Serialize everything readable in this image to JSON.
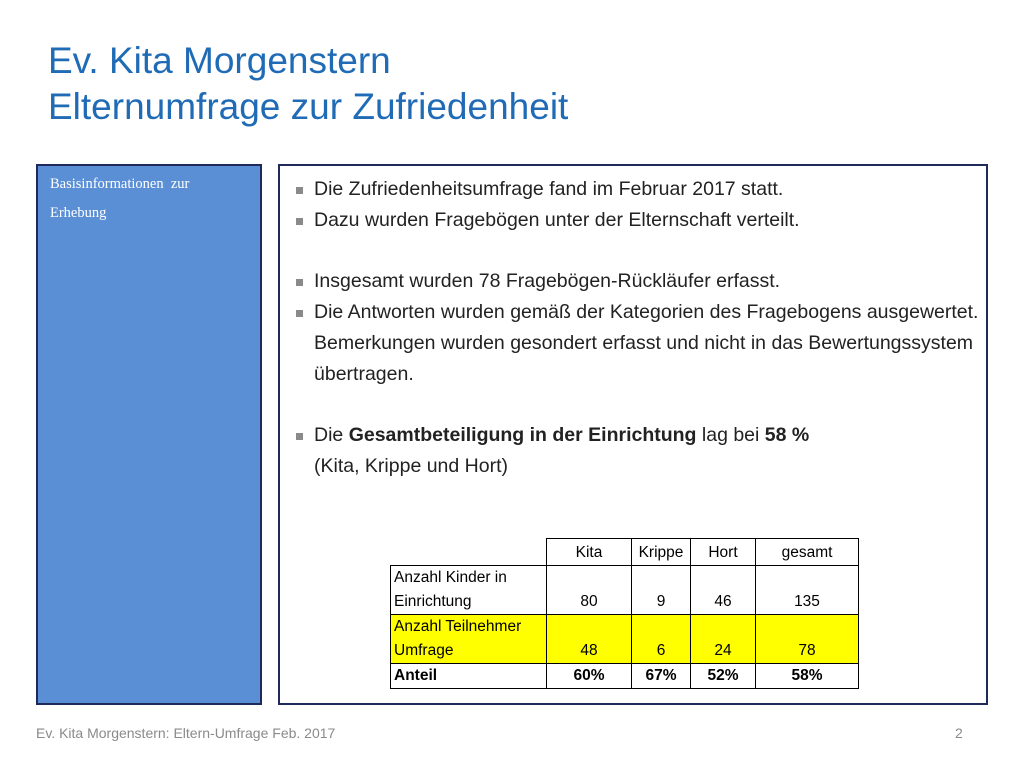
{
  "title": {
    "line1": "Ev. Kita Morgenstern",
    "line2": "Elternumfrage zur Zufriedenheit"
  },
  "side_panel": {
    "line1": "Basisinformationen  zur",
    "line2": "Erhebung"
  },
  "bullets": [
    {
      "text": "Die Zufriedenheitsumfrage fand im Februar 2017 statt."
    },
    {
      "text": "Dazu wurden Fragebögen unter der Elternschaft verteilt."
    },
    {
      "text": "Insgesamt wurden 78 Fragebögen-Rückläufer erfasst."
    },
    {
      "text": "Die Antworten wurden gemäß der Kategorien des Fragebogens ausgewertet. Bemerkungen wurden gesondert erfasst und nicht in das Bewertungssystem übertragen."
    },
    {
      "pre": "Die ",
      "bold1": "Gesamtbeteiligung in der Einrichtung",
      "mid": " lag bei ",
      "bold2": "58 %",
      "line2": "(Kita, Krippe und Hort)"
    }
  ],
  "table": {
    "headers": [
      "Kita",
      "Krippe",
      "Hort",
      "gesamt"
    ],
    "rows": [
      {
        "label": "Anzahl Kinder in Einrichtung",
        "values": [
          "80",
          "9",
          "46",
          "135"
        ]
      },
      {
        "label": "Anzahl Teilnehmer Umfrage",
        "values": [
          "48",
          "6",
          "24",
          "78"
        ]
      },
      {
        "label": "Anteil",
        "values": [
          "60%",
          "67%",
          "52%",
          "58%"
        ]
      }
    ]
  },
  "footer": {
    "left": "Ev. Kita Morgenstern: Eltern-Umfrage Feb. 2017",
    "page": "2"
  },
  "colors": {
    "title": "#1f6bb5",
    "panel": "#5a8fd6",
    "border": "#1f2a5a",
    "highlight": "#ffff00"
  }
}
